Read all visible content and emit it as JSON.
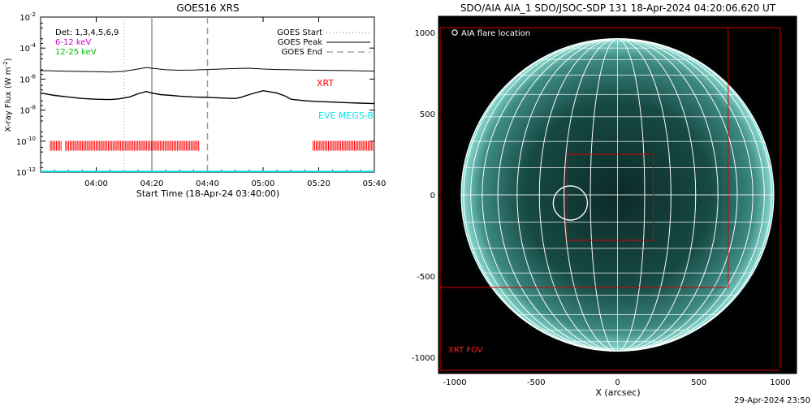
{
  "chart_data": [
    {
      "type": "line",
      "title": "GOES16 XRS",
      "ylabel": "X-ray Flux (W m⁻²)",
      "ylabel_base": "X-ray Flux (W m",
      "ylabel_sup": "-2",
      "ylabel_close": ")",
      "xlabel": "Start Time (18-Apr-24 03:40:00)",
      "x_tick_labels": [
        "04:00",
        "04:20",
        "04:40",
        "05:00",
        "05:20",
        "05:40"
      ],
      "x_ticks_min": [
        20,
        40,
        60,
        80,
        100,
        120
      ],
      "xlim_min": [
        0,
        120
      ],
      "y_log": true,
      "ylim_exp": [
        -12,
        -2
      ],
      "y_tick_labels": [
        {
          "base": "10",
          "exp": "-2"
        },
        {
          "base": "10",
          "exp": "-4"
        },
        {
          "base": "10",
          "exp": "-6"
        },
        {
          "base": "10",
          "exp": "-8"
        },
        {
          "base": "10",
          "exp": "-10"
        },
        {
          "base": "10",
          "exp": "-12"
        }
      ],
      "y_tick_exps": [
        -2,
        -4,
        -6,
        -8,
        -10,
        -12
      ],
      "legend_left": [
        {
          "text": "Det: 1,3,4,5,6,9",
          "color": "#000000"
        },
        {
          "text": "6-12 keV",
          "color": "#cc00cc"
        },
        {
          "text": "12-25 keV",
          "color": "#00bb00"
        }
      ],
      "legend_right": [
        {
          "text": "GOES Start",
          "style": "dotted"
        },
        {
          "text": "GOES Peak",
          "style": "solid"
        },
        {
          "text": "GOES End",
          "style": "dashed"
        }
      ],
      "markers_min": {
        "start": 30,
        "peak": 40,
        "end": 60
      },
      "labels": {
        "xrt": "XRT",
        "eve": "EVE MEGS-B"
      },
      "colors": {
        "xrt": "#ff0000",
        "eve": "#00e5ee",
        "marker": "#999999"
      },
      "series": [
        {
          "name": "GOES long",
          "x_min": [
            0,
            10,
            20,
            25,
            30,
            35,
            38,
            40,
            45,
            50,
            55,
            60,
            65,
            70,
            75,
            80,
            85,
            90,
            95,
            100,
            105,
            110,
            115,
            120
          ],
          "log_flux": [
            -5.45,
            -5.5,
            -5.52,
            -5.55,
            -5.5,
            -5.35,
            -5.25,
            -5.3,
            -5.4,
            -5.43,
            -5.42,
            -5.38,
            -5.35,
            -5.32,
            -5.3,
            -5.35,
            -5.38,
            -5.4,
            -5.42,
            -5.43,
            -5.44,
            -5.45,
            -5.47,
            -5.48
          ]
        },
        {
          "name": "GOES short",
          "x_min": [
            0,
            5,
            10,
            15,
            20,
            25,
            28,
            32,
            35,
            38,
            40,
            43,
            47,
            50,
            55,
            60,
            65,
            70,
            72,
            75,
            80,
            85,
            88,
            90,
            95,
            100,
            105,
            110,
            115,
            120
          ],
          "log_flux": [
            -6.9,
            -7.05,
            -7.15,
            -7.25,
            -7.3,
            -7.32,
            -7.28,
            -7.15,
            -6.95,
            -6.8,
            -6.9,
            -7.0,
            -7.05,
            -7.1,
            -7.15,
            -7.18,
            -7.22,
            -7.25,
            -7.18,
            -7.0,
            -6.75,
            -6.9,
            -7.1,
            -7.3,
            -7.4,
            -7.45,
            -7.48,
            -7.52,
            -7.55,
            -7.58
          ]
        }
      ],
      "xrt_obs_min": [
        [
          3.5,
          7.5
        ],
        [
          9,
          57
        ],
        [
          98,
          120
        ]
      ],
      "xrt_level_exp": -10.3,
      "eve_level_exp": -11.97
    },
    {
      "type": "scatter",
      "title": "SDO/AIA AIA_1 SDO/JSOC-SDP 131 18-Apr-2024 04:20:06.620 UT",
      "xlabel": "X (arcsec)",
      "ylabel": "",
      "xlim": [
        -1100,
        1100
      ],
      "ylim": [
        -1100,
        1100
      ],
      "x_tick_labels": [
        "-1000",
        "-500",
        "0",
        "500",
        "1000"
      ],
      "x_ticks": [
        -1000,
        -500,
        0,
        500,
        1000
      ],
      "y_tick_labels": [
        "1000",
        "500",
        "0",
        "-500",
        "-1000"
      ],
      "y_ticks": [
        1000,
        500,
        0,
        -500,
        -1000
      ],
      "solar_radius_arcsec": 960,
      "legend": "AIA flare location",
      "flare_location": {
        "x": -290,
        "y": -50,
        "r": 105
      },
      "fov_label": "XRT FOV",
      "fov_outer": [
        -1090,
        1030,
        1000,
        -1080
      ],
      "fov_mid": [
        -1090,
        1030,
        680,
        -570
      ],
      "fov_inner": [
        -310,
        250,
        220,
        -280
      ],
      "colors": {
        "fov": "#d40000",
        "disk": "#3fa89c",
        "grid": "#ffffff"
      }
    }
  ],
  "footer": {
    "timestamp": "29-Apr-2024 23:50"
  }
}
